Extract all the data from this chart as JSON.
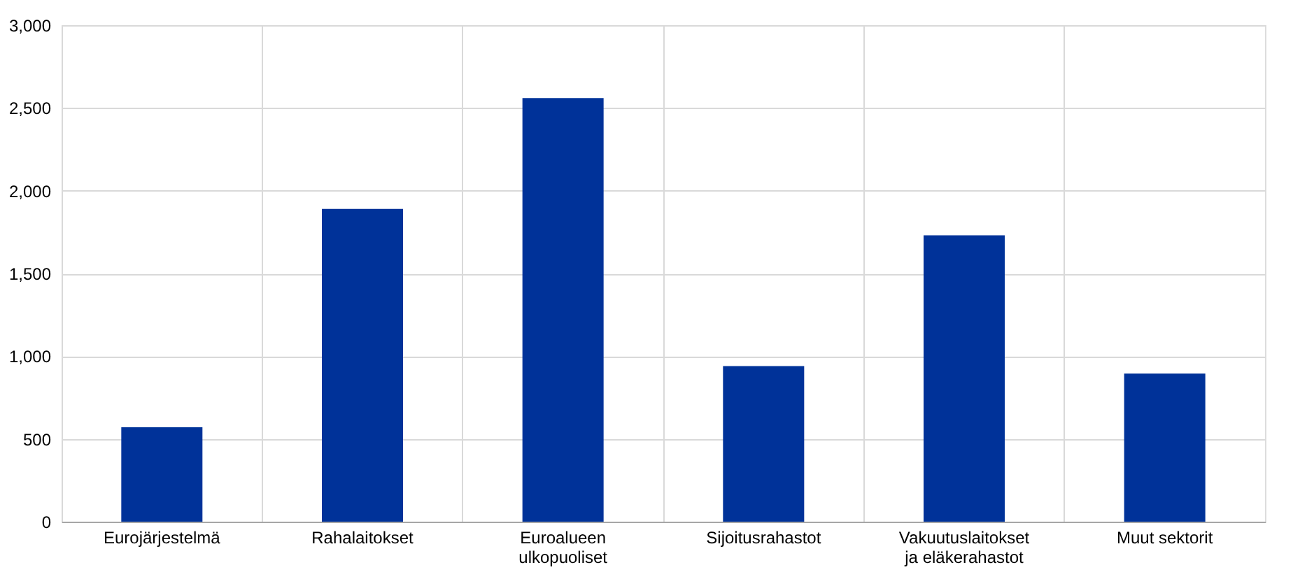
{
  "chart_data": {
    "type": "bar",
    "categories": [
      "Eurojärjestelmä",
      "Rahalaitokset",
      "Euroalueen ulkopuoliset",
      "Sijoitusrahastot",
      "Vakuutuslaitokset ja eläkerahastot",
      "Muut sektorit"
    ],
    "values": [
      570,
      1890,
      2560,
      940,
      1730,
      895
    ],
    "color": "#003299",
    "ylim": [
      0,
      3000
    ],
    "yticks": [
      {
        "value": 0,
        "label": "0"
      },
      {
        "value": 500,
        "label": "500"
      },
      {
        "value": 1000,
        "label": "1,000"
      },
      {
        "value": 1500,
        "label": "1,500"
      },
      {
        "value": 2000,
        "label": "2,000"
      },
      {
        "value": 2500,
        "label": "2,500"
      },
      {
        "value": 3000,
        "label": "3,000"
      }
    ],
    "grid": true
  }
}
